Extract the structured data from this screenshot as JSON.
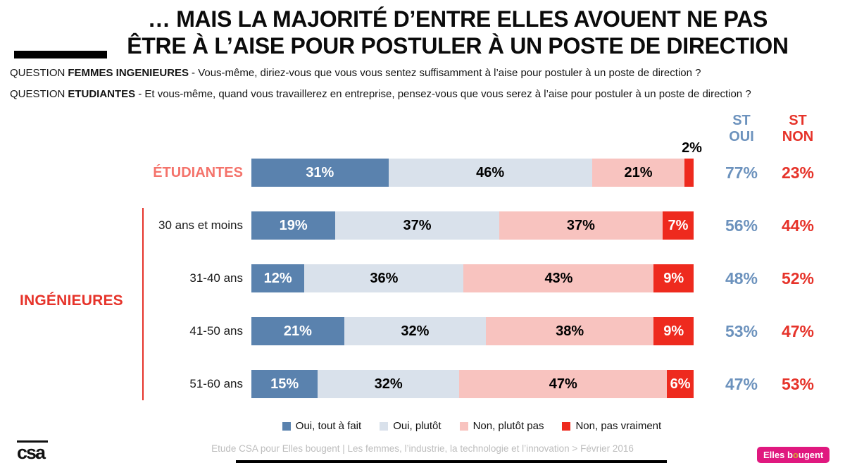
{
  "header": {
    "title_line1": "… MAIS LA MAJORITÉ D’ENTRE ELLES AVOUENT NE PAS",
    "title_line2": "ÊTRE À L’AISE POUR POSTULER À UN POSTE DE DIRECTION",
    "questions": [
      {
        "prefix": "QUESTION",
        "audience": "FEMMES INGENIEURES",
        "text": "- Vous-même, diriez-vous que vous vous sentez suffisamment à l’aise pour postuler à un poste de direction ?"
      },
      {
        "prefix": "QUESTION",
        "audience": "ETUDIANTES",
        "text": "- Et vous-même, quand vous travaillerez en entreprise, pensez-vous que vous serez à l’aise pour postuler à un poste de direction ?"
      }
    ]
  },
  "st_headers": {
    "oui": "ST\nOUI",
    "non": "ST\nNON",
    "oui_color": "#6c92bd",
    "non_color": "#e6332a"
  },
  "group_labels": {
    "etudiantes": "ÉTUDIANTES",
    "etudiantes_color": "#f4736b",
    "ingenieures": "INGÉNIEURES",
    "ingenieures_color": "#e6332a"
  },
  "legend": {
    "items": [
      {
        "label": "Oui, tout à fait",
        "color": "#5a82ae"
      },
      {
        "label": "Oui, plutôt",
        "color": "#d9e1eb"
      },
      {
        "label": "Non, plutôt pas",
        "color": "#f8c3bf"
      },
      {
        "label": "Non, pas vraiment",
        "color": "#ee2a1e"
      }
    ]
  },
  "chart_data": {
    "type": "bar",
    "variant": "horizontal-stacked-100",
    "title": "… MAIS LA MAJORITÉ D’ENTRE ELLES AVOUENT NE PAS ÊTRE À L’AISE POUR POSTULER À UN POSTE DE DIRECTION",
    "categories": [
      "ÉTUDIANTES",
      "30 ans et moins",
      "31-40 ans",
      "41-50 ans",
      "51-60 ans"
    ],
    "series": [
      {
        "name": "Oui, tout à fait",
        "color": "#5a82ae",
        "values": [
          31,
          19,
          12,
          21,
          15
        ]
      },
      {
        "name": "Oui, plutôt",
        "color": "#d9e1eb",
        "values": [
          46,
          37,
          36,
          32,
          32
        ]
      },
      {
        "name": "Non, plutôt pas",
        "color": "#f8c3bf",
        "values": [
          21,
          37,
          43,
          38,
          47
        ]
      },
      {
        "name": "Non, pas vraiment",
        "color": "#ee2a1e",
        "values": [
          2,
          7,
          9,
          9,
          6
        ]
      }
    ],
    "st_totals": {
      "oui": [
        77,
        56,
        48,
        53,
        47
      ],
      "non": [
        23,
        44,
        52,
        47,
        53
      ]
    },
    "xlim": [
      0,
      100
    ],
    "legend_position": "bottom",
    "rows": [
      {
        "label": "ÉTUDIANTES",
        "st_oui": "77%",
        "st_non": "23%",
        "segments": [
          {
            "pct": 31,
            "label": "31%"
          },
          {
            "pct": 46,
            "label": "46%"
          },
          {
            "pct": 21,
            "label": "21%"
          },
          {
            "pct": 2,
            "label": "2%"
          }
        ]
      },
      {
        "label": "30 ans et moins",
        "st_oui": "56%",
        "st_non": "44%",
        "segments": [
          {
            "pct": 19,
            "label": "19%"
          },
          {
            "pct": 37,
            "label": "37%"
          },
          {
            "pct": 37,
            "label": "37%"
          },
          {
            "pct": 7,
            "label": "7%"
          }
        ]
      },
      {
        "label": "31-40 ans",
        "st_oui": "48%",
        "st_non": "52%",
        "segments": [
          {
            "pct": 12,
            "label": "12%"
          },
          {
            "pct": 36,
            "label": "36%"
          },
          {
            "pct": 43,
            "label": "43%"
          },
          {
            "pct": 9,
            "label": "9%"
          }
        ]
      },
      {
        "label": "41-50 ans",
        "st_oui": "53%",
        "st_non": "47%",
        "segments": [
          {
            "pct": 21,
            "label": "21%"
          },
          {
            "pct": 32,
            "label": "32%"
          },
          {
            "pct": 38,
            "label": "38%"
          },
          {
            "pct": 9,
            "label": "9%"
          }
        ]
      },
      {
        "label": "51-60 ans",
        "st_oui": "47%",
        "st_non": "53%",
        "segments": [
          {
            "pct": 15,
            "label": "15%"
          },
          {
            "pct": 32,
            "label": "32%"
          },
          {
            "pct": 47,
            "label": "47%"
          },
          {
            "pct": 6,
            "label": "6%"
          }
        ]
      }
    ]
  },
  "footer": {
    "source": "Etude CSA pour Elles bougent | Les femmes, l’industrie, la technologie et l’innovation > Février 2016",
    "csa_logo": "csa",
    "elles_bougent": {
      "part1": "Elles b",
      "symbol": "o",
      "part2": "ugent",
      "bg_color": "#e0187f",
      "symbol_color": "#d8a62f"
    }
  }
}
